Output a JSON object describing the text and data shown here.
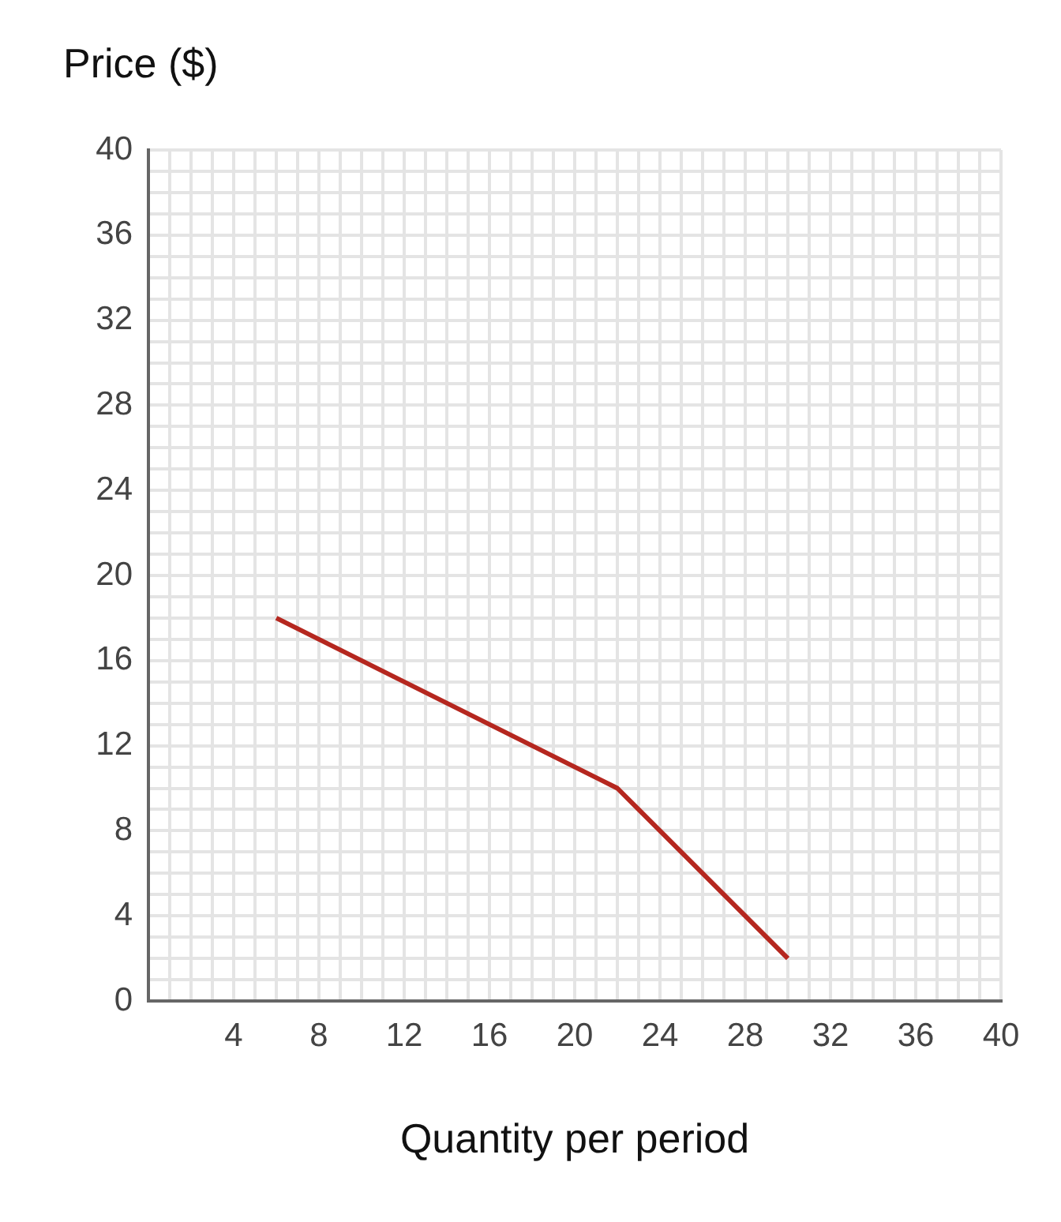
{
  "chart_data": {
    "type": "line",
    "xlabel": "Quantity per period",
    "ylabel": "Price ($)",
    "x": [
      6,
      22,
      30
    ],
    "series": [
      {
        "color": "#b5271f",
        "values": [
          18,
          10,
          2
        ]
      }
    ],
    "xlim": [
      0,
      40
    ],
    "ylim": [
      0,
      40
    ],
    "xticks": [
      {
        "value": 0,
        "label": null
      },
      {
        "value": 1,
        "label": null
      },
      {
        "value": 2,
        "label": null
      },
      {
        "value": 3,
        "label": null
      },
      4,
      {
        "value": 5,
        "label": null
      },
      {
        "value": 6,
        "label": null
      },
      {
        "value": 7,
        "label": null
      },
      8,
      {
        "value": 9,
        "label": null
      },
      {
        "value": 10,
        "label": null
      },
      {
        "value": 11,
        "label": null
      },
      12,
      {
        "value": 13,
        "label": null
      },
      {
        "value": 14,
        "label": null
      },
      {
        "value": 15,
        "label": null
      },
      16,
      {
        "value": 17,
        "label": null
      },
      {
        "value": 18,
        "label": null
      },
      {
        "value": 19,
        "label": null
      },
      20,
      {
        "value": 21,
        "label": null
      },
      {
        "value": 22,
        "label": null
      },
      {
        "value": 23,
        "label": null
      },
      24,
      {
        "value": 25,
        "label": null
      },
      {
        "value": 26,
        "label": null
      },
      {
        "value": 27,
        "label": null
      },
      28,
      {
        "value": 29,
        "label": null
      },
      {
        "value": 30,
        "label": null
      },
      {
        "value": 31,
        "label": null
      },
      32,
      {
        "value": 33,
        "label": null
      },
      {
        "value": 34,
        "label": null
      },
      {
        "value": 35,
        "label": null
      },
      36,
      {
        "value": 37,
        "label": null
      },
      {
        "value": 38,
        "label": null
      },
      {
        "value": 39,
        "label": null
      },
      40
    ],
    "yticks": [
      0,
      {
        "value": 1,
        "label": null
      },
      {
        "value": 2,
        "label": null
      },
      {
        "value": 3,
        "label": null
      },
      4,
      {
        "value": 5,
        "label": null
      },
      {
        "value": 6,
        "label": null
      },
      {
        "value": 7,
        "label": null
      },
      8,
      {
        "value": 9,
        "label": null
      },
      {
        "value": 10,
        "label": null
      },
      {
        "value": 11,
        "label": null
      },
      12,
      {
        "value": 13,
        "label": null
      },
      {
        "value": 14,
        "label": null
      },
      {
        "value": 15,
        "label": null
      },
      16,
      {
        "value": 17,
        "label": null
      },
      {
        "value": 18,
        "label": null
      },
      {
        "value": 19,
        "label": null
      },
      20,
      {
        "value": 21,
        "label": null
      },
      {
        "value": 22,
        "label": null
      },
      {
        "value": 23,
        "label": null
      },
      24,
      {
        "value": 25,
        "label": null
      },
      {
        "value": 26,
        "label": null
      },
      {
        "value": 27,
        "label": null
      },
      28,
      {
        "value": 29,
        "label": null
      },
      {
        "value": 30,
        "label": null
      },
      {
        "value": 31,
        "label": null
      },
      32,
      {
        "value": 33,
        "label": null
      },
      {
        "value": 34,
        "label": null
      },
      {
        "value": 35,
        "label": null
      },
      36,
      {
        "value": 37,
        "label": null
      },
      {
        "value": 38,
        "label": null
      },
      {
        "value": 39,
        "label": null
      },
      40
    ],
    "grid": true,
    "legend": false,
    "marker": "none",
    "line_style": "solid"
  }
}
